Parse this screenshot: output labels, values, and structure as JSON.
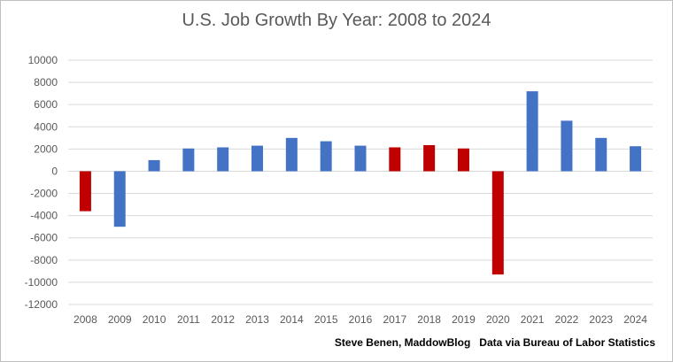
{
  "chart_data": {
    "type": "bar",
    "title": "U.S. Job Growth By Year: 2008 to 2024",
    "xlabel": "",
    "ylabel": "",
    "ylim": [
      -12000,
      10000
    ],
    "yticks": [
      10000,
      8000,
      6000,
      4000,
      2000,
      0,
      -2000,
      -4000,
      -6000,
      -8000,
      -10000,
      -12000
    ],
    "grid": true,
    "categories": [
      "2008",
      "2009",
      "2010",
      "2011",
      "2012",
      "2013",
      "2014",
      "2015",
      "2016",
      "2017",
      "2018",
      "2019",
      "2020",
      "2021",
      "2022",
      "2023",
      "2024"
    ],
    "values": [
      -3600,
      -5000,
      1000,
      2050,
      2150,
      2300,
      3000,
      2700,
      2300,
      2150,
      2350,
      2050,
      -9300,
      7200,
      4550,
      3000,
      2250
    ],
    "bar_colors": [
      "#c00000",
      "#4472c4",
      "#4472c4",
      "#4472c4",
      "#4472c4",
      "#4472c4",
      "#4472c4",
      "#4472c4",
      "#4472c4",
      "#c00000",
      "#c00000",
      "#c00000",
      "#c00000",
      "#4472c4",
      "#4472c4",
      "#4472c4",
      "#4472c4"
    ],
    "credit": "Steve Benen, MaddowBlog   Data via Bureau of Labor Statistics"
  },
  "colors": {
    "gridline": "#d9d9d9",
    "text": "#595959",
    "border": "#bfbfbf"
  }
}
